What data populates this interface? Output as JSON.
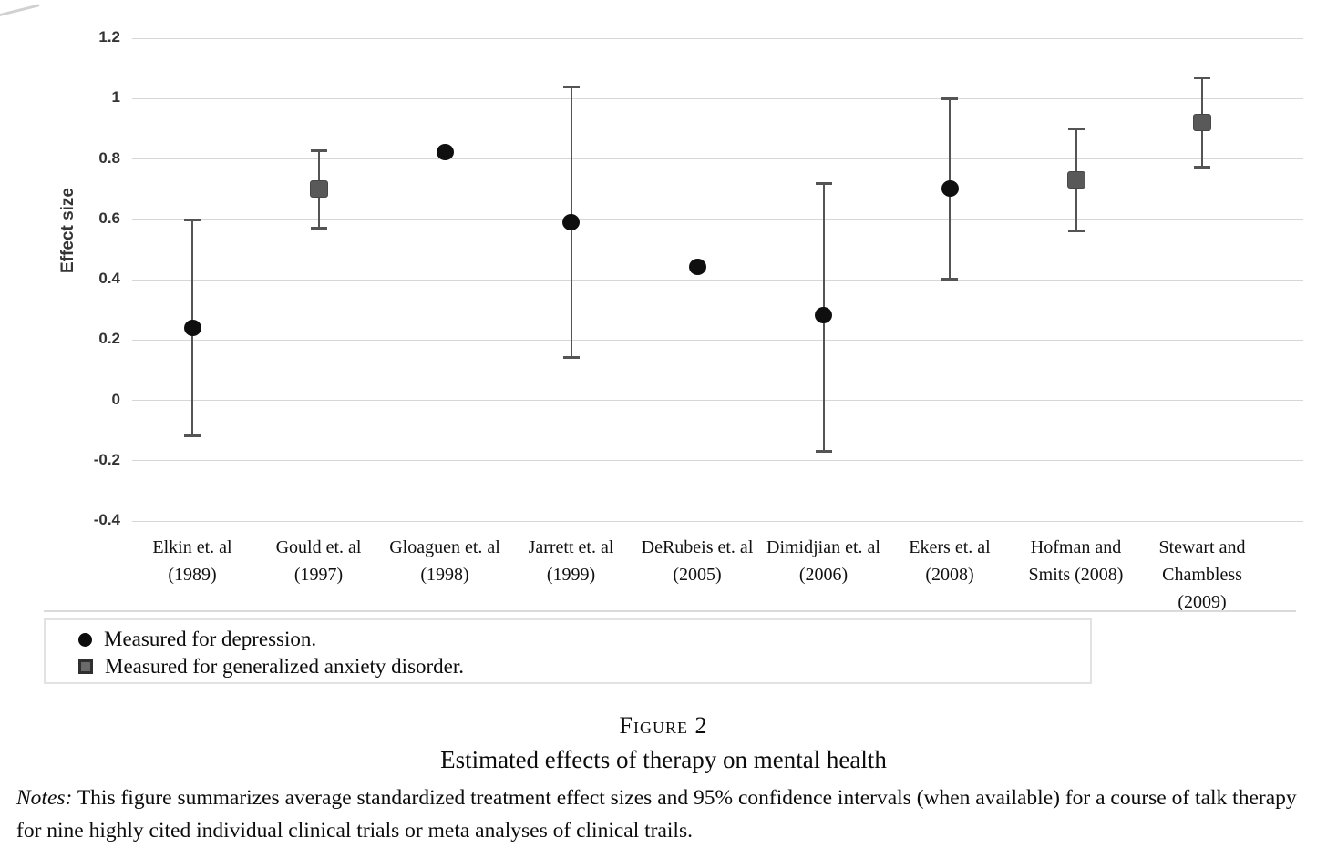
{
  "chart_data": {
    "type": "scatter",
    "title": "",
    "xlabel": "",
    "ylabel": "Effect size",
    "ylim": [
      -0.4,
      1.2
    ],
    "grid": "horizontal",
    "legend_position": "bottom-left boxed",
    "yticks": [
      {
        "label": "1.2",
        "value": 1.2
      },
      {
        "label": "1",
        "value": 1.0
      },
      {
        "label": "0.8",
        "value": 0.8
      },
      {
        "label": "0.6",
        "value": 0.6
      },
      {
        "label": "0.4",
        "value": 0.4
      },
      {
        "label": "0.2",
        "value": 0.2
      },
      {
        "label": "0",
        "value": 0
      },
      {
        "label": "-0.2",
        "value": -0.2
      },
      {
        "label": "-0.4",
        "value": -0.4
      }
    ],
    "points": [
      {
        "label_lines": [
          "Elkin et. al",
          "(1989)"
        ],
        "group": "depression",
        "marker": "circle",
        "effect": 0.24,
        "ci_low": -0.12,
        "ci_high": 0.6
      },
      {
        "label_lines": [
          "Gould et. al",
          "(1997)"
        ],
        "group": "generalized anxiety disorder",
        "marker": "square",
        "effect": 0.7,
        "ci_low": 0.57,
        "ci_high": 0.83
      },
      {
        "label_lines": [
          "Gloaguen et. al",
          "(1998)"
        ],
        "group": "depression",
        "marker": "circle",
        "effect": 0.82,
        "ci_low": null,
        "ci_high": null
      },
      {
        "label_lines": [
          "Jarrett et. al",
          "(1999)"
        ],
        "group": "depression",
        "marker": "circle",
        "effect": 0.59,
        "ci_low": 0.14,
        "ci_high": 1.04
      },
      {
        "label_lines": [
          "DeRubeis et. al",
          "(2005)"
        ],
        "group": "depression",
        "marker": "circle",
        "effect": 0.44,
        "ci_low": null,
        "ci_high": null
      },
      {
        "label_lines": [
          "Dimidjian et. al",
          "(2006)"
        ],
        "group": "depression",
        "marker": "circle",
        "effect": 0.28,
        "ci_low": -0.17,
        "ci_high": 0.72
      },
      {
        "label_lines": [
          "Ekers et. al",
          "(2008)"
        ],
        "group": "depression",
        "marker": "circle",
        "effect": 0.7,
        "ci_low": 0.4,
        "ci_high": 1.0
      },
      {
        "label_lines": [
          "Hofman and",
          "Smits (2008)"
        ],
        "group": "generalized anxiety disorder",
        "marker": "square",
        "effect": 0.73,
        "ci_low": 0.56,
        "ci_high": 0.9
      },
      {
        "label_lines": [
          "Stewart and",
          "Chambless",
          "(2009)"
        ],
        "group": "generalized anxiety disorder",
        "marker": "square",
        "effect": 0.92,
        "ci_low": 0.77,
        "ci_high": 1.07
      }
    ]
  },
  "legend": {
    "items": [
      {
        "marker": "circle",
        "label": "Measured for depression."
      },
      {
        "marker": "square",
        "label": "Measured for generalized anxiety disorder."
      }
    ]
  },
  "caption": {
    "figure_label": "Figure 2",
    "title": "Estimated effects of therapy on mental health"
  },
  "notes": {
    "prefix": "Notes:",
    "text": "This figure summarizes average standardized treatment effect sizes and 95% confidence intervals (when available) for a course of talk therapy for nine highly cited individual clinical trials or meta analyses of clinical trails."
  },
  "colors": {
    "depression_marker": "#0f0f0f",
    "anxiety_marker": "#595959",
    "whisker": "#545454",
    "gridline": "#d6d6d6",
    "tick_text": "#333333",
    "legend_border": "#e2e2e2"
  }
}
